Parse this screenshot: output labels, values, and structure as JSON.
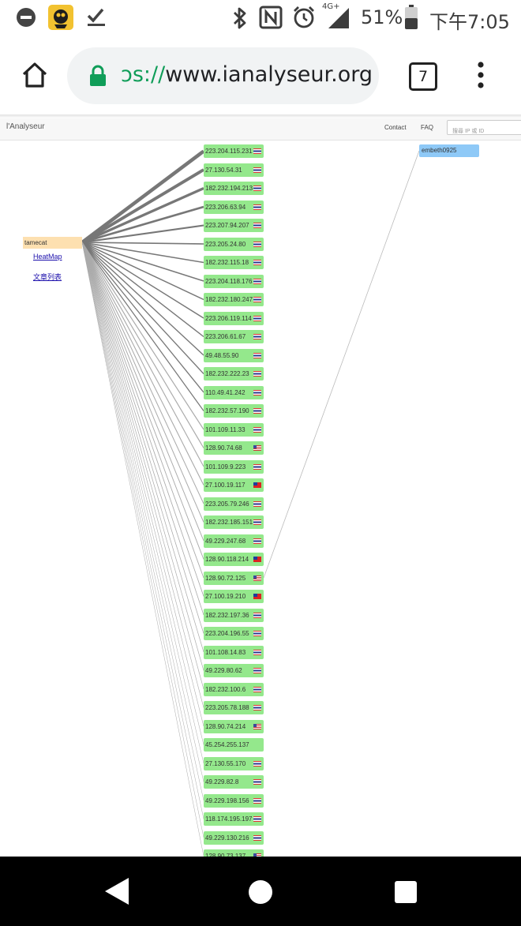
{
  "status_bar": {
    "network_label": "4G+",
    "battery_percent": "51%",
    "time": "下午7:05",
    "icons": [
      "minus-circle-icon",
      "app-notification-icon",
      "check-download-icon",
      "bluetooth-icon",
      "nfc-icon",
      "alarm-icon",
      "signal-icon",
      "battery-icon"
    ]
  },
  "browser": {
    "url_scheme": "ɔs://",
    "url_host": "www.ianalyseur.org",
    "tab_count": "7",
    "icons": [
      "home-icon",
      "lock-icon",
      "more-vert-icon"
    ]
  },
  "site": {
    "title": "l'Analyseur",
    "nav": [
      "Contact",
      "FAQ"
    ],
    "search_placeholder": "搜尋 IP 或 ID"
  },
  "graph": {
    "user": "tamecat",
    "target": "embeth0925",
    "links": [
      "HeatMap",
      "文章列表"
    ],
    "ips": [
      {
        "ip": "223.204.115.231",
        "flag": "th"
      },
      {
        "ip": "27.130.54.31",
        "flag": "th"
      },
      {
        "ip": "182.232.194.213",
        "flag": "th"
      },
      {
        "ip": "223.206.63.94",
        "flag": "th"
      },
      {
        "ip": "223.207.94.207",
        "flag": "th"
      },
      {
        "ip": "223.205.24.80",
        "flag": "th"
      },
      {
        "ip": "182.232.115.18",
        "flag": "th"
      },
      {
        "ip": "223.204.118.176",
        "flag": "th"
      },
      {
        "ip": "182.232.180.247",
        "flag": "th"
      },
      {
        "ip": "223.206.119.114",
        "flag": "th"
      },
      {
        "ip": "223.206.61.67",
        "flag": "th"
      },
      {
        "ip": "49.48.55.90",
        "flag": "th"
      },
      {
        "ip": "182.232.222.23",
        "flag": "th"
      },
      {
        "ip": "110.49.41.242",
        "flag": "th"
      },
      {
        "ip": "182.232.57.190",
        "flag": "th"
      },
      {
        "ip": "101.109.11.33",
        "flag": "th"
      },
      {
        "ip": "128.90.74.68",
        "flag": "us"
      },
      {
        "ip": "101.109.9.223",
        "flag": "th"
      },
      {
        "ip": "27.100.19.117",
        "flag": "tw"
      },
      {
        "ip": "223.205.79.246",
        "flag": "th"
      },
      {
        "ip": "182.232.185.151",
        "flag": "th"
      },
      {
        "ip": "49.229.247.68",
        "flag": "th"
      },
      {
        "ip": "128.90.118.214",
        "flag": "tw"
      },
      {
        "ip": "128.90.72.125",
        "flag": "us"
      },
      {
        "ip": "27.100.19.210",
        "flag": "tw"
      },
      {
        "ip": "182.232.197.36",
        "flag": "th"
      },
      {
        "ip": "223.204.196.55",
        "flag": "th"
      },
      {
        "ip": "101.108.14.83",
        "flag": "th"
      },
      {
        "ip": "49.229.80.62",
        "flag": "th"
      },
      {
        "ip": "182.232.100.6",
        "flag": "th"
      },
      {
        "ip": "223.205.78.188",
        "flag": "th"
      },
      {
        "ip": "128.90.74.214",
        "flag": "us"
      },
      {
        "ip": "45.254.255.137",
        "flag": ""
      },
      {
        "ip": "27.130.55.170",
        "flag": "th"
      },
      {
        "ip": "49.229.82.8",
        "flag": "th"
      },
      {
        "ip": "49.229.198.156",
        "flag": "th"
      },
      {
        "ip": "118.174.195.197",
        "flag": "th"
      },
      {
        "ip": "49.229.130.216",
        "flag": "th"
      },
      {
        "ip": "128.90.73.137",
        "flag": "us"
      }
    ],
    "target_link_ip": "128.90.72.125"
  },
  "colors": {
    "ip_node": "#94e88c",
    "user_node": "#fde0b0",
    "target_node": "#8ec9f7",
    "link": "#1a0dab",
    "url_scheme": "#0f9d58"
  }
}
